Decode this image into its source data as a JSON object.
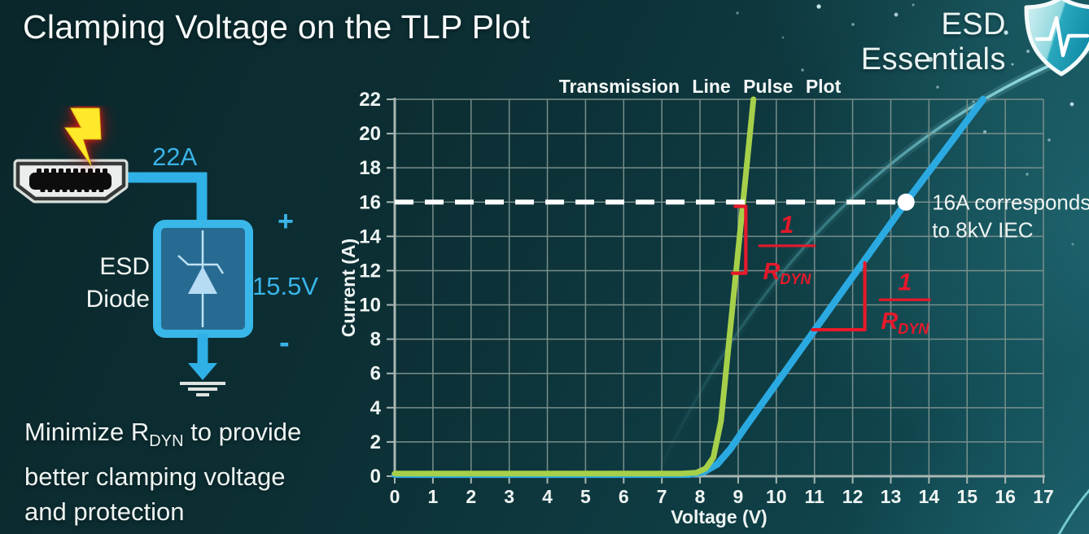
{
  "colors": {
    "cyan": "#3ab4e9",
    "green": "#a6d04a",
    "blue": "#2baae2",
    "red": "#e5192b",
    "white": "#eef4f2"
  },
  "header": {
    "title": "Clamping Voltage on the TLP Plot",
    "brand": "ESD Essentials"
  },
  "diagram": {
    "surge_current": "22A",
    "device_line1": "ESD",
    "device_line2": "Diode",
    "plus": "+",
    "clamp_voltage": "15.5V",
    "minus": "-"
  },
  "note": {
    "line1_prefix": "Minimize R",
    "line1_sub": "DYN",
    "line1_suffix": " to provide",
    "line2": "better clamping voltage",
    "line3": "and protection"
  },
  "chart_data": {
    "type": "line",
    "title": "Transmission Line Pulse Plot",
    "xlabel": "Voltage (V)",
    "ylabel": "Current (A)",
    "xlim": [
      0,
      17
    ],
    "ylim": [
      0,
      22
    ],
    "x_ticks": [
      0,
      1,
      2,
      3,
      4,
      5,
      6,
      7,
      8,
      9,
      10,
      11,
      12,
      13,
      14,
      15,
      16,
      17
    ],
    "y_ticks": [
      0,
      2,
      4,
      6,
      8,
      10,
      12,
      14,
      16,
      18,
      20,
      22
    ],
    "grid": true,
    "legend": false,
    "series": [
      {
        "name": "blue-curve-higher-rdyn",
        "color_key": "blue",
        "width": 8.5,
        "points": [
          [
            0,
            0.1
          ],
          [
            7.7,
            0.1
          ],
          [
            8.1,
            0.25
          ],
          [
            8.45,
            0.7
          ],
          [
            8.8,
            1.6
          ],
          [
            9.15,
            2.75
          ],
          [
            13.4,
            16
          ],
          [
            15.42,
            22
          ]
        ]
      },
      {
        "name": "green-curve-lower-rdyn",
        "color_key": "green",
        "width": 7,
        "points": [
          [
            0,
            0.15
          ],
          [
            7.5,
            0.15
          ],
          [
            7.9,
            0.2
          ],
          [
            8.15,
            0.45
          ],
          [
            8.35,
            1.1
          ],
          [
            8.55,
            3.2
          ],
          [
            9.4,
            22
          ]
        ]
      }
    ],
    "threshold": {
      "y": 16,
      "marker_x": 13.4,
      "label_line1": "16A corresponds",
      "label_line2": "to 8kV IEC"
    },
    "slope_annotations": [
      {
        "for": "green",
        "segments": [
          [
            9.2,
            15.75,
            9.2,
            11.85
          ],
          [
            8.92,
            15.75,
            9.2,
            15.75
          ],
          [
            8.85,
            11.85,
            9.2,
            11.85
          ]
        ],
        "fraction": {
          "num": "1",
          "den": "R",
          "den_sub": "DYN",
          "x": 10.28,
          "num_y": 14.2,
          "bar_y": 13.45,
          "den_y": 11.5,
          "bar_half": 0.72
        }
      },
      {
        "for": "blue",
        "segments": [
          [
            10.95,
            8.55,
            12.32,
            8.55
          ],
          [
            12.32,
            8.55,
            12.32,
            12.45
          ]
        ],
        "fraction": {
          "num": "1",
          "den": "R",
          "den_sub": "DYN",
          "x": 13.37,
          "num_y": 10.85,
          "bar_y": 10.3,
          "den_y": 8.6,
          "bar_half": 0.65
        }
      }
    ]
  }
}
